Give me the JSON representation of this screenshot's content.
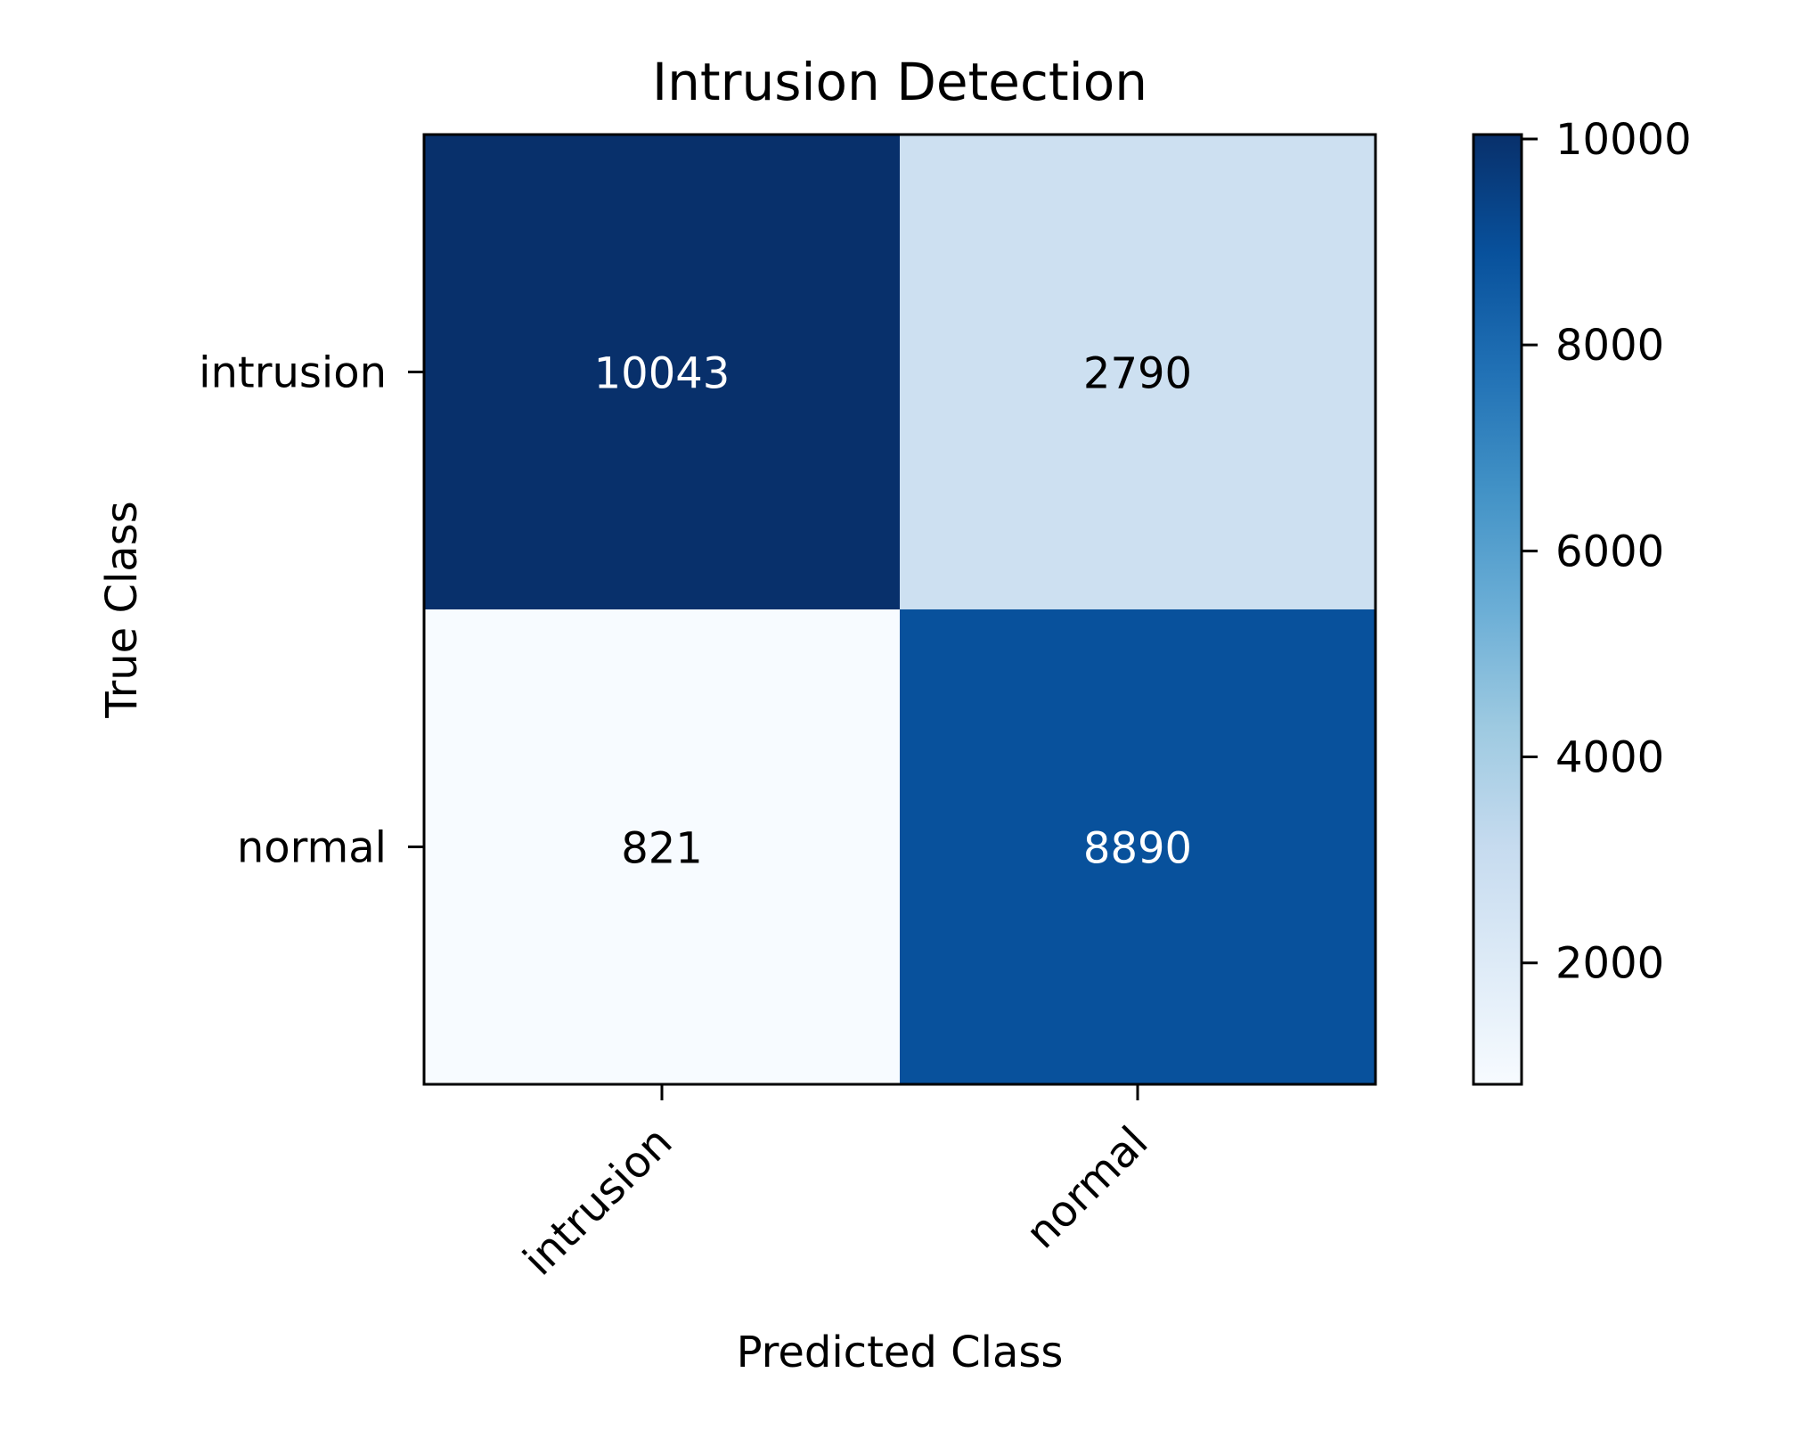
{
  "chart_data": {
    "type": "heatmap",
    "title": "Intrusion Detection",
    "xlabel": "Predicted Class",
    "ylabel": "True Class",
    "x_categories": [
      "intrusion",
      "normal"
    ],
    "y_categories": [
      "intrusion",
      "normal"
    ],
    "values": [
      [
        10043,
        2790
      ],
      [
        821,
        8890
      ]
    ],
    "colormap": "Blues",
    "colorbar": {
      "range": [
        821,
        10043
      ],
      "ticks": [
        2000,
        4000,
        6000,
        8000,
        10000
      ],
      "tick_labels": [
        "2000",
        "4000",
        "6000",
        "8000",
        "10000"
      ]
    },
    "text_colors": {
      "light": "#ffffff",
      "dark": "#000000"
    }
  }
}
